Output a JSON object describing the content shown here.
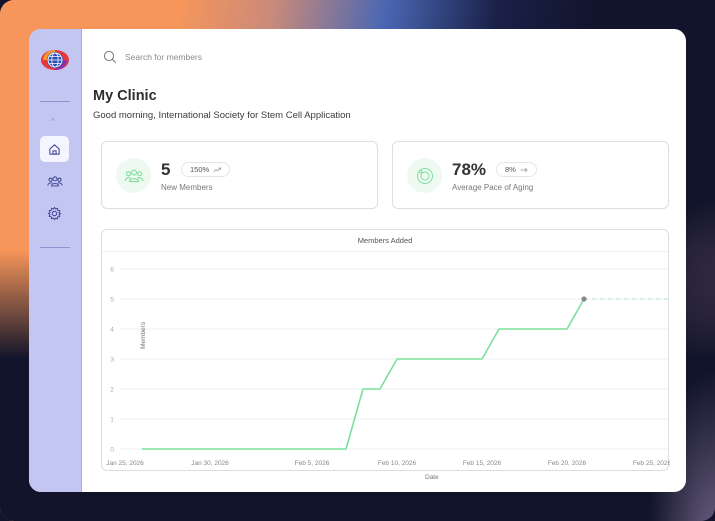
{
  "sidebar": {
    "logo": "globe-logo",
    "collapse_caret": "^",
    "items": [
      {
        "name": "home",
        "icon": "home-icon",
        "active": true
      },
      {
        "name": "members",
        "icon": "users-icon",
        "active": false
      },
      {
        "name": "settings",
        "icon": "gear-icon",
        "active": false
      }
    ]
  },
  "search": {
    "placeholder": "Search for members",
    "value": ""
  },
  "header": {
    "title": "My Clinic",
    "greeting": "Good morning, International Society for Stem Cell Application"
  },
  "stats": [
    {
      "value": "5",
      "badge": "150%",
      "badge_icon": "trend-up-icon",
      "label": "New Members",
      "icon": "users-icon"
    },
    {
      "value": "78%",
      "badge": "8%",
      "badge_icon": "arrow-right-icon",
      "label": "Average Pace of Aging",
      "icon": "ring-icon"
    }
  ],
  "colors": {
    "sidebar_bg": "#c4c6f2",
    "accent_green": "#7ddf9a",
    "icon_circle_bg": "#eefaf1"
  },
  "chart_data": {
    "type": "line",
    "title": "Members Added",
    "xlabel": "Date",
    "ylabel": "Members",
    "ylim": [
      0,
      6
    ],
    "yticks": [
      "0",
      "1",
      "2",
      "3",
      "4",
      "5",
      "6"
    ],
    "xticks": [
      "Jan 25, 2026",
      "Jan 30, 2026",
      "Feb 5, 2026",
      "Feb 10, 2026",
      "Feb 15, 2026",
      "Feb 20, 2026",
      "Feb 25, 2026"
    ],
    "grid": true,
    "series": [
      {
        "name": "Members",
        "color": "#7ddf9a",
        "x": [
          "Jan 26, 2026",
          "Feb 7, 2026",
          "Feb 8, 2026",
          "Feb 9, 2026",
          "Feb 10, 2026",
          "Feb 15, 2026",
          "Feb 16, 2026",
          "Feb 20, 2026",
          "Feb 21, 2026"
        ],
        "values": [
          0,
          0,
          2,
          2,
          3,
          3,
          4,
          4,
          5
        ]
      }
    ],
    "projection": {
      "from": "Feb 21, 2026",
      "value": 5,
      "style": "dashed"
    },
    "marker": {
      "x": "Feb 21, 2026",
      "value": 5,
      "color": "#888888"
    }
  }
}
